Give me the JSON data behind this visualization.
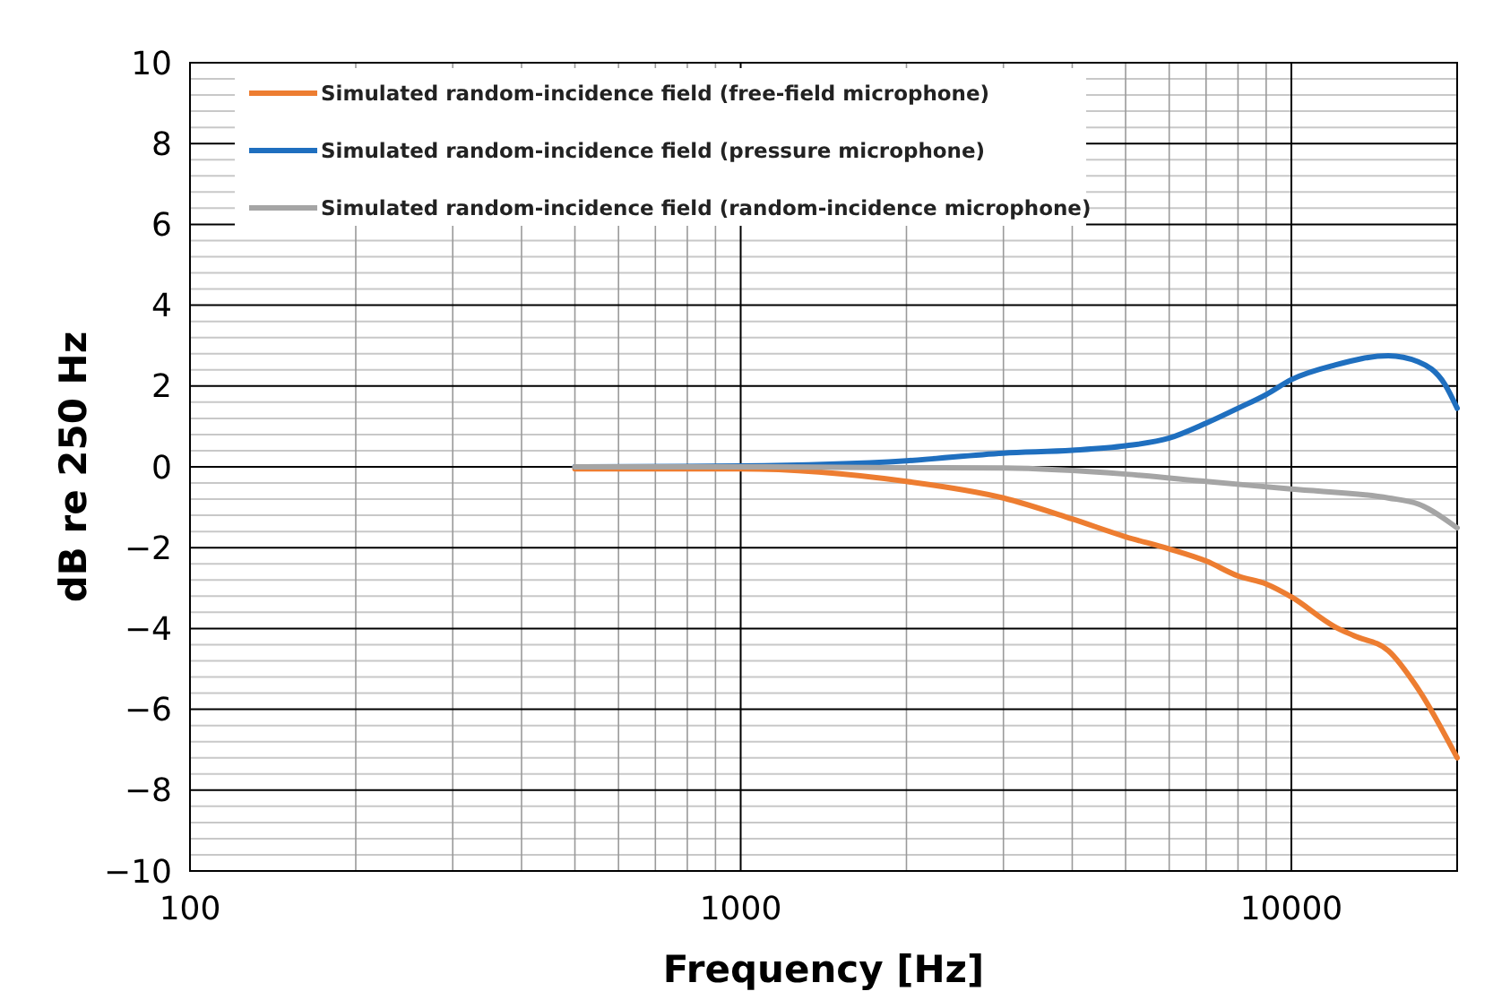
{
  "chart_data": {
    "type": "line",
    "xlabel": "Frequency [Hz]",
    "ylabel": "dB re 250 Hz",
    "log": "x",
    "xlim": [
      100,
      20000
    ],
    "xticks": [
      100,
      1000,
      10000
    ],
    "ylim": [
      -10,
      10
    ],
    "yticks": [
      {
        "value": -10,
        "label": "−10"
      },
      {
        "value": -8,
        "label": "−8"
      },
      {
        "value": -6,
        "label": "−6"
      },
      {
        "value": -4,
        "label": "−4"
      },
      {
        "value": -2,
        "label": "−2"
      },
      0,
      2,
      4,
      6,
      8,
      10
    ],
    "grid": true,
    "legend": "top left",
    "marker": "none",
    "line_style": "solid",
    "series": [
      {
        "name": "Simulated random-incidence  field (free-field microphone)",
        "color": "#ed7d31",
        "x": [
          500,
          1000,
          2000,
          3000,
          4000,
          5000,
          6000,
          7000,
          8000,
          9000,
          10000,
          12000,
          13000,
          15000,
          17000,
          20000
        ],
        "values": [
          -0.05,
          -0.05,
          -0.36,
          -0.77,
          -1.29,
          -1.73,
          -2.03,
          -2.33,
          -2.7,
          -2.9,
          -3.22,
          -3.96,
          -4.18,
          -4.55,
          -5.5,
          -7.2
        ]
      },
      {
        "name": "Simulated random-incidence  field (pressure microphone)",
        "color": "#1f6fbf",
        "x": [
          500,
          1000,
          2000,
          3000,
          4000,
          5000,
          6000,
          7000,
          8000,
          9000,
          10000,
          12000,
          15000,
          17000,
          19000,
          20000
        ],
        "values": [
          0,
          0.02,
          0.15,
          0.34,
          0.41,
          0.52,
          0.71,
          1.08,
          1.45,
          1.79,
          2.16,
          2.52,
          2.75,
          2.6,
          2.04,
          1.45
        ]
      },
      {
        "name": "Simulated random-incidence  field (random-incidence microphone)",
        "color": "#a5a5a5",
        "x": [
          500,
          1000,
          2000,
          3000,
          5000,
          7000,
          10000,
          15000,
          17000,
          20000
        ],
        "values": [
          0,
          0,
          -0.02,
          -0.03,
          -0.18,
          -0.36,
          -0.55,
          -0.77,
          -0.92,
          -1.51
        ]
      }
    ]
  }
}
